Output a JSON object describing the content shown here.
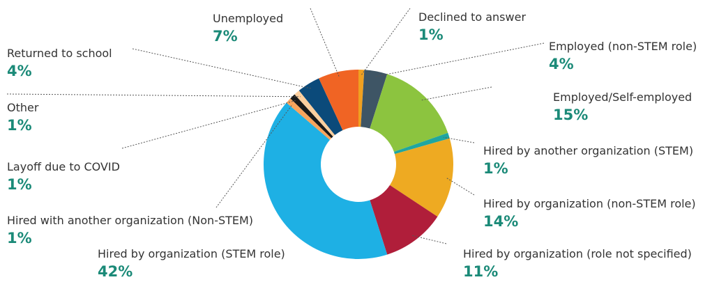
{
  "chart_data": {
    "type": "donut",
    "categories": [
      "Declined to answer",
      "Employed (non-STEM role)",
      "Employed/Self-employed",
      "Hired by another organization (STEM)",
      "Hired by organization (non-STEM role)",
      "Hired by organization (role not specified)",
      "Hired by organization (STEM role)",
      "Hired with another organization (Non-STEM)",
      "Layoff due to COVID",
      "Other",
      "Returned to school",
      "Unemployed"
    ],
    "values": [
      1,
      4,
      15,
      1,
      14,
      11,
      42,
      1,
      1,
      1,
      4,
      7
    ],
    "value_labels": [
      "1%",
      "4%",
      "15%",
      "1%",
      "14%",
      "11%",
      "42%",
      "1%",
      "1%",
      "1%",
      "4%",
      "7%"
    ],
    "colors": [
      "#f0a020",
      "#3e5565",
      "#8cc43f",
      "#1fa6a0",
      "#eeaa22",
      "#b01e3a",
      "#1eb0e4",
      "#f8a45c",
      "#1a1a1a",
      "#fdcf9e",
      "#0b4a7a",
      "#f06424"
    ]
  }
}
